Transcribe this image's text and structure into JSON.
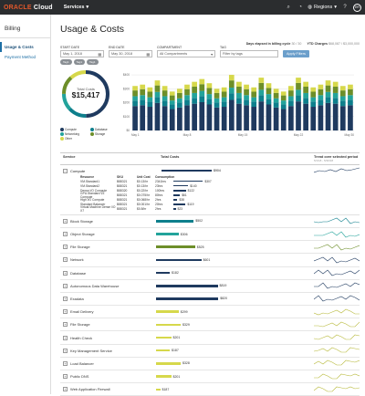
{
  "topbar": {
    "logo": "ORACLE",
    "logo_suffix": "Cloud",
    "services": "Services",
    "region": "Regions",
    "avatar": "ER"
  },
  "sidebar": {
    "title": "Billing",
    "items": [
      {
        "label": "Usage & Costs"
      },
      {
        "label": "Payment Method"
      }
    ]
  },
  "page": {
    "title": "Usage & Costs"
  },
  "stats": {
    "days_label": "Days elapsed in billing cycle",
    "days_value": "30 / 30",
    "ytd_label": "YTD Charges",
    "ytd_value": "$68,087 / $3,000,000"
  },
  "filters": {
    "start_label": "START DATE",
    "start_value": "May 1, 2018",
    "end_label": "END DATE",
    "end_value": "May 30, 2018",
    "compartment_label": "COMPARTMENT",
    "compartment_value": "All Compartments",
    "tag_label": "TAG",
    "tag_placeholder": "Filter by tags",
    "apply": "Apply Filters",
    "chips": [
      "Tag1",
      "Tag1",
      "Tag1"
    ]
  },
  "donut": {
    "label": "Total Costs",
    "amount": "$15,417",
    "legend": [
      {
        "label": "Compute",
        "color": "#1f3a5f"
      },
      {
        "label": "Database",
        "color": "#0e7f8c"
      },
      {
        "label": "Networking",
        "color": "#23a39b"
      },
      {
        "label": "Storage",
        "color": "#6d8e29"
      },
      {
        "label": "Other",
        "color": "#d6d84b"
      }
    ]
  },
  "chart_data": {
    "type": "bar",
    "y_ticks": [
      "$0",
      "$100",
      "$200",
      "$300",
      "$400"
    ],
    "x_ticks": [
      "May 1",
      "May 8",
      "May 15",
      "May 22",
      "May 30"
    ],
    "ylim": [
      0,
      420
    ],
    "stack_colors": [
      "#1f3a5f",
      "#0e7f8c",
      "#23a39b",
      "#6d8e29",
      "#d6d84b"
    ],
    "totals": [
      320,
      330,
      310,
      360,
      320,
      280,
      300,
      330,
      350,
      370,
      340,
      300,
      310,
      400,
      350,
      330,
      310,
      380,
      340,
      300,
      280,
      320,
      380,
      350,
      310,
      330,
      360,
      350,
      320,
      330
    ]
  },
  "table": {
    "col_service": "Service",
    "col_cost": "Total Costs",
    "col_trend": "Trend over selected period",
    "col_trend_sub": "5/1/18 - 5/30/18",
    "expanded": {
      "name": "Compute",
      "value": "$904",
      "sub_headers": {
        "resource": "Resource",
        "sku": "SKU",
        "unit": "Unit Cost",
        "consumption": "Consumption"
      },
      "sub_rows": [
        {
          "resource": "VM.Standard1",
          "sku": "B88321",
          "unit": "$0.13/hr",
          "consumption": "2341hrs",
          "value": "$307",
          "frac": 0.9
        },
        {
          "resource": "VM.Standard2",
          "sku": "B88321",
          "unit": "$0.13/hr",
          "consumption": "23hrs",
          "value": "$140",
          "frac": 0.45
        },
        {
          "resource": "Dense I/O Compute",
          "sku": "B88320",
          "unit": "$0.22/hr",
          "consumption": "100hrs",
          "value": "$122",
          "frac": 0.38
        },
        {
          "resource": "GPU.Standard VZ Compute",
          "sku": "B88321",
          "unit": "$0.075/hr",
          "consumption": "80hrs",
          "value": "$61",
          "frac": 0.2
        },
        {
          "resource": "High I/O Compute",
          "sku": "B88321",
          "unit": "$0.068/hr",
          "consumption": "2hrs",
          "value": "$38",
          "frac": 0.12
        },
        {
          "resource": "Standard Balancer",
          "sku": "B88321",
          "unit": "$0.001/hr",
          "consumption": "20hrs",
          "value": "$119",
          "frac": 0.37
        },
        {
          "resource": "Virtual Machine Dense I/O X7",
          "sku": "B88321",
          "unit": "$0.8/hr",
          "consumption": "2hrs",
          "value": "$23",
          "frac": 0.07
        }
      ]
    },
    "rows": [
      {
        "name": "Block Storage",
        "value": "$502",
        "frac": 0.55,
        "color": "#0e7f8c"
      },
      {
        "name": "Object Storage",
        "value": "$306",
        "frac": 0.33,
        "color": "#23a39b"
      },
      {
        "name": "File Storage",
        "value": "$525",
        "frac": 0.57,
        "color": "#6d8e29"
      },
      {
        "name": "Network",
        "value": "$601",
        "frac": 0.66,
        "color": "#1f3a5f"
      },
      {
        "name": "Database",
        "value": "$182",
        "frac": 0.2,
        "color": "#1f3a5f"
      },
      {
        "name": "Autonomous Data Warehouse",
        "value": "$819",
        "frac": 0.9,
        "color": "#1f3a5f"
      },
      {
        "name": "Exadata",
        "value": "$820",
        "frac": 0.91,
        "color": "#1f3a5f"
      },
      {
        "name": "Email Delivery",
        "value": "$299",
        "frac": 0.33,
        "color": "#d6d84b"
      },
      {
        "name": "File Storage",
        "value": "$329",
        "frac": 0.36,
        "color": "#d6d84b"
      },
      {
        "name": "Health Check",
        "value": "$201",
        "frac": 0.22,
        "color": "#d6d84b"
      },
      {
        "name": "Key Management Service",
        "value": "$187",
        "frac": 0.2,
        "color": "#d6d84b"
      },
      {
        "name": "Load Balancer",
        "value": "$328",
        "frac": 0.36,
        "color": "#d6d84b"
      },
      {
        "name": "Public DNS",
        "value": "$201",
        "frac": 0.22,
        "color": "#d6d84b"
      },
      {
        "name": "Web Application Firewall",
        "value": "$187",
        "frac": 0.06,
        "color": "#d6d84b"
      }
    ]
  }
}
